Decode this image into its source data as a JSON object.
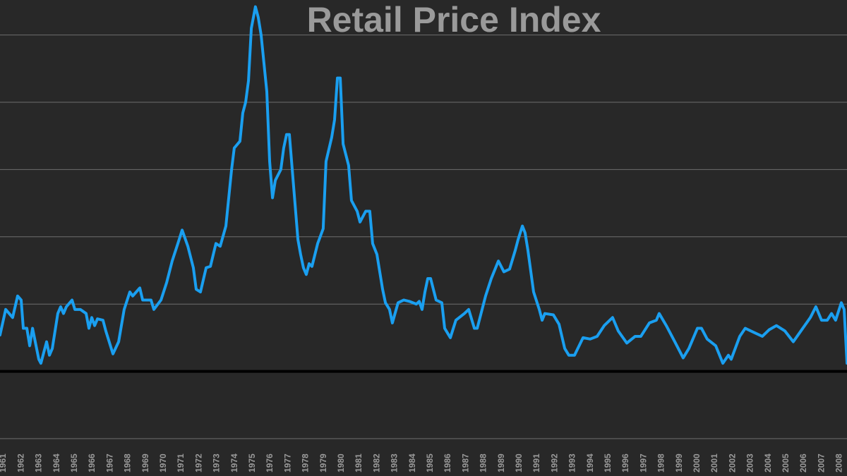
{
  "chart_data": {
    "type": "line",
    "title": "Retail Price Index",
    "color": "#1a9ff0",
    "grid": true,
    "xlim": [
      1960.8,
      2008.42
    ],
    "xticks": [
      1961,
      1962,
      1963,
      1964,
      1965,
      1966,
      1967,
      1968,
      1969,
      1970,
      1971,
      1972,
      1973,
      1974,
      1975,
      1976,
      1977,
      1978,
      1979,
      1980,
      1981,
      1982,
      1983,
      1984,
      1985,
      1986,
      1987,
      1988,
      1989,
      1990,
      1991,
      1992,
      1993,
      1994,
      1995,
      1996,
      1997,
      1998,
      1999,
      2000,
      2001,
      2002,
      2003,
      2004,
      2005,
      2006,
      2007,
      2008
    ],
    "ylim": [
      -5,
      27.6
    ],
    "yticks": [
      -5,
      0,
      5,
      10,
      15,
      20,
      25
    ],
    "x": [
      1960.8,
      1961.12,
      1961.51,
      1961.79,
      1961.99,
      1962.11,
      1962.31,
      1962.47,
      1962.63,
      1962.98,
      1963.1,
      1963.42,
      1963.58,
      1963.74,
      1964.05,
      1964.21,
      1964.37,
      1964.53,
      1964.85,
      1965.01,
      1965.32,
      1965.64,
      1965.8,
      1965.96,
      1966.12,
      1966.28,
      1966.59,
      1966.75,
      1967.15,
      1967.47,
      1967.78,
      1968.1,
      1968.26,
      1968.66,
      1968.82,
      1969.29,
      1969.45,
      1969.85,
      1970.17,
      1970.48,
      1970.8,
      1971.04,
      1971.36,
      1971.67,
      1971.83,
      1972.07,
      1972.39,
      1972.63,
      1972.94,
      1973.18,
      1973.5,
      1973.66,
      1973.82,
      1973.97,
      1974.29,
      1974.45,
      1974.61,
      1974.77,
      1974.93,
      1975.16,
      1975.32,
      1975.48,
      1975.64,
      1975.8,
      1975.96,
      1976.12,
      1976.28,
      1976.59,
      1976.75,
      1976.91,
      1977.07,
      1977.23,
      1977.39,
      1977.55,
      1977.7,
      1977.86,
      1978.02,
      1978.18,
      1978.34,
      1978.66,
      1978.97,
      1979.13,
      1979.45,
      1979.61,
      1979.77,
      1979.93,
      1980.09,
      1980.4,
      1980.56,
      1980.88,
      1981.04,
      1981.36,
      1981.59,
      1981.75,
      1981.99,
      1982.31,
      1982.47,
      1982.7,
      1982.86,
      1983.18,
      1983.5,
      1983.82,
      1984.21,
      1984.37,
      1984.53,
      1984.69,
      1984.85,
      1985.01,
      1985.32,
      1985.64,
      1985.8,
      1986.12,
      1986.43,
      1986.91,
      1987.15,
      1987.47,
      1987.63,
      1988.1,
      1988.42,
      1988.82,
      1989.13,
      1989.45,
      1989.77,
      1989.93,
      1990.17,
      1990.32,
      1990.48,
      1990.8,
      1991.12,
      1991.28,
      1991.43,
      1991.91,
      1992.23,
      1992.55,
      1992.78,
      1993.1,
      1993.58,
      1993.98,
      1994.37,
      1994.77,
      1995.24,
      1995.56,
      1996.04,
      1996.51,
      1996.83,
      1997.31,
      1997.7,
      1997.86,
      1998.26,
      1998.74,
      1999.21,
      1999.53,
      2000.01,
      2000.24,
      2000.56,
      2001.04,
      2001.44,
      2001.75,
      2001.91,
      2002.39,
      2002.7,
      2003.18,
      2003.66,
      2004.05,
      2004.45,
      2004.93,
      2005.4,
      2005.88,
      2006.36,
      2006.67,
      2006.99,
      2007.31,
      2007.55,
      2007.78,
      2008.1,
      2008.26,
      2008.42
    ],
    "values": [
      2.7,
      4.6,
      4.0,
      5.6,
      5.3,
      3.2,
      3.2,
      1.9,
      3.2,
      0.9,
      0.6,
      2.2,
      1.2,
      1.7,
      4.3,
      4.8,
      4.3,
      4.8,
      5.3,
      4.6,
      4.6,
      4.3,
      3.2,
      4.0,
      3.4,
      3.9,
      3.8,
      3.0,
      1.3,
      2.2,
      4.6,
      5.9,
      5.6,
      6.2,
      5.3,
      5.3,
      4.6,
      5.3,
      6.6,
      8.2,
      9.5,
      10.5,
      9.3,
      7.7,
      6.1,
      5.9,
      7.7,
      7.8,
      9.5,
      9.3,
      10.8,
      12.9,
      15.0,
      16.6,
      17.1,
      19.2,
      20.0,
      21.6,
      25.5,
      27.1,
      26.3,
      25.0,
      22.9,
      20.8,
      15.6,
      12.9,
      14.2,
      15.0,
      16.6,
      17.6,
      17.6,
      15.0,
      12.4,
      9.8,
      8.7,
      7.7,
      7.2,
      8.0,
      7.8,
      9.5,
      10.6,
      15.6,
      17.4,
      18.7,
      21.8,
      21.8,
      16.9,
      15.3,
      12.7,
      11.9,
      11.1,
      11.9,
      11.9,
      9.5,
      8.7,
      6.1,
      5.1,
      4.6,
      3.6,
      5.1,
      5.3,
      5.2,
      5.0,
      5.2,
      4.6,
      5.9,
      6.9,
      6.9,
      5.3,
      5.1,
      3.2,
      2.5,
      3.8,
      4.3,
      4.6,
      3.2,
      3.2,
      5.6,
      6.9,
      8.2,
      7.4,
      7.6,
      9.0,
      9.8,
      10.8,
      10.3,
      9.0,
      5.9,
      4.6,
      3.8,
      4.3,
      4.2,
      3.5,
      1.7,
      1.2,
      1.2,
      2.5,
      2.4,
      2.6,
      3.4,
      4.0,
      3.0,
      2.1,
      2.6,
      2.6,
      3.6,
      3.8,
      4.3,
      3.4,
      2.2,
      1.0,
      1.7,
      3.2,
      3.2,
      2.4,
      1.9,
      0.6,
      1.2,
      0.9,
      2.6,
      3.2,
      2.9,
      2.6,
      3.1,
      3.4,
      3.0,
      2.2,
      3.1,
      4.0,
      4.8,
      3.8,
      3.8,
      4.3,
      3.8,
      5.1,
      4.6,
      0.6
    ]
  }
}
